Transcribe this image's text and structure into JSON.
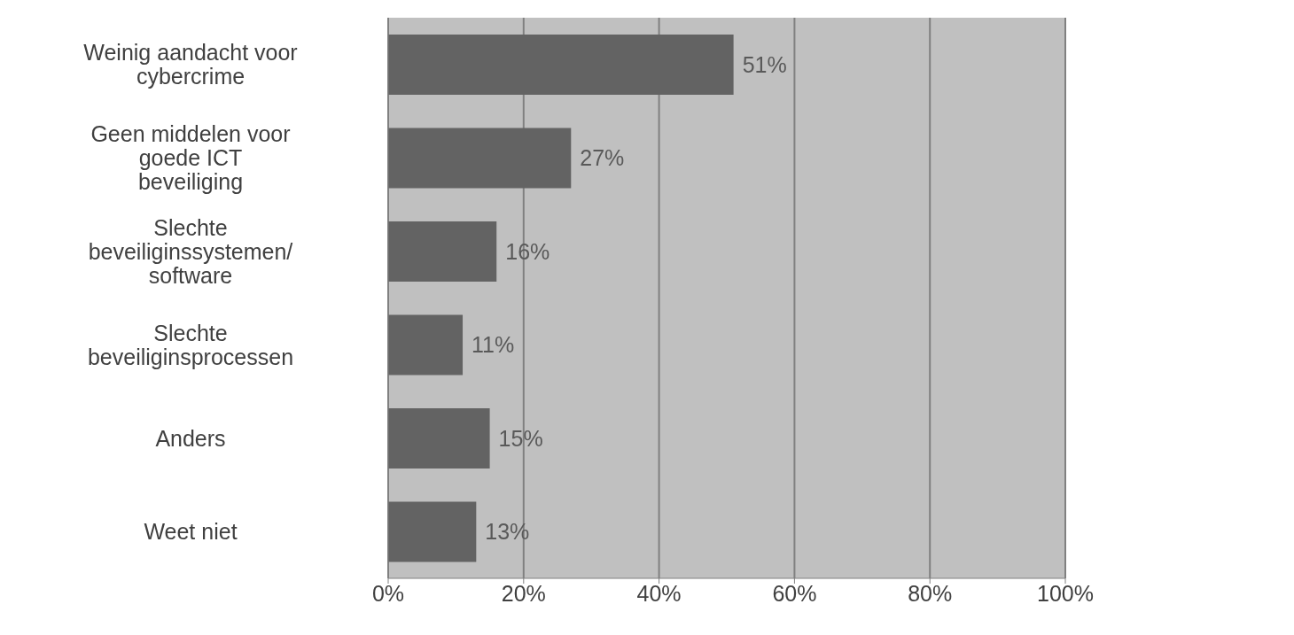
{
  "chart_data": {
    "type": "bar",
    "orientation": "horizontal",
    "categories": [
      "Weinig aandacht voor cybercrime",
      "Geen middelen voor goede ICT beveiliging",
      "Slechte beveiliginssystemen/ software",
      "Slechte beveiliginsprocessen",
      "Anders",
      "Weet niet"
    ],
    "values": [
      51,
      27,
      16,
      11,
      15,
      13
    ],
    "value_labels": [
      "51%",
      "27%",
      "16%",
      "11%",
      "15%",
      "13%"
    ],
    "color": "#636363",
    "xlim": [
      0,
      100
    ],
    "xticks": [
      {
        "value": 0,
        "label": "0%"
      },
      {
        "value": 20,
        "label": "20%"
      },
      {
        "value": 40,
        "label": "40%"
      },
      {
        "value": 60,
        "label": "60%"
      },
      {
        "value": 80,
        "label": "80%"
      },
      {
        "value": 100,
        "label": "100%"
      }
    ],
    "grid": "x"
  }
}
